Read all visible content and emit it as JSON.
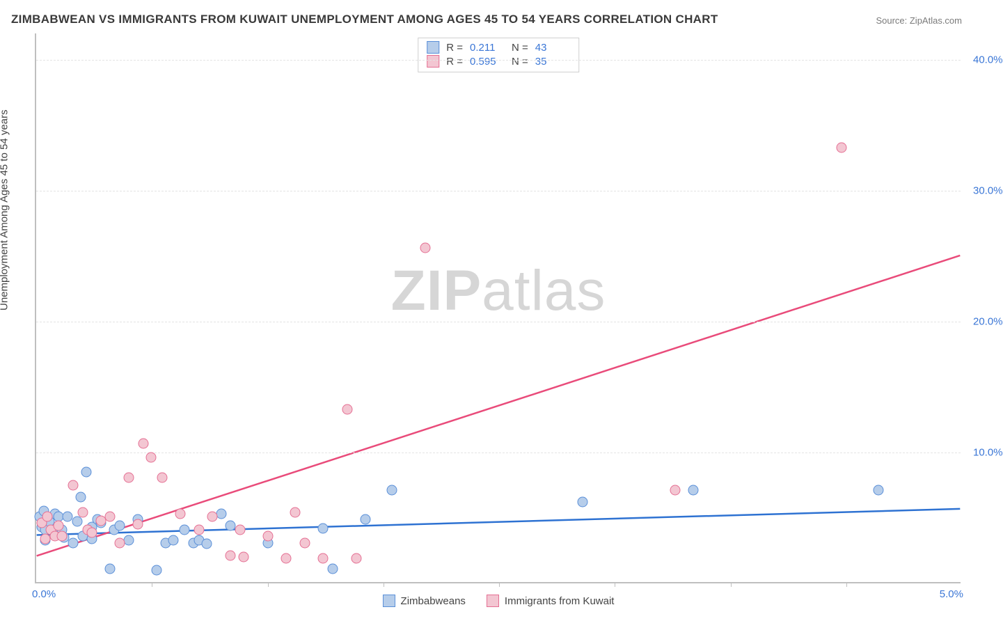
{
  "title": "ZIMBABWEAN VS IMMIGRANTS FROM KUWAIT UNEMPLOYMENT AMONG AGES 45 TO 54 YEARS CORRELATION CHART",
  "source_label": "Source: ",
  "source_name": "ZipAtlas.com",
  "ylabel": "Unemployment Among Ages 45 to 54 years",
  "watermark_a": "ZIP",
  "watermark_b": "atlas",
  "chart": {
    "type": "scatter",
    "xlim": [
      0,
      5
    ],
    "ylim": [
      0,
      42
    ],
    "x_tick_labels": {
      "origin": "0.0%",
      "right": "5.0%"
    },
    "y_ticks": [
      10,
      20,
      30,
      40
    ],
    "y_tick_labels": [
      "10.0%",
      "20.0%",
      "30.0%",
      "40.0%"
    ],
    "x_minor_ticks": [
      0.625,
      1.25,
      1.875,
      2.5,
      3.125,
      3.75,
      4.375
    ],
    "grid_color": "#e3e3e3",
    "axis_color": "#bfbfbf",
    "tick_label_color": "#3a76d6",
    "background_color": "#ffffff",
    "series": [
      {
        "name": "Zimbabweans",
        "fill": "#b6cdea",
        "stroke": "#5a8fd8",
        "line_color": "#2e72d2",
        "R_label": "R =",
        "R": "0.211",
        "N_label": "N =",
        "N": "43",
        "trend": {
          "x1": 0,
          "y1": 3.6,
          "x2": 5,
          "y2": 5.6
        },
        "points": [
          [
            0.02,
            5.0
          ],
          [
            0.03,
            4.2
          ],
          [
            0.04,
            5.4
          ],
          [
            0.05,
            3.2
          ],
          [
            0.05,
            4.0
          ],
          [
            0.07,
            4.6
          ],
          [
            0.1,
            3.8
          ],
          [
            0.1,
            5.2
          ],
          [
            0.12,
            5.0
          ],
          [
            0.14,
            4.0
          ],
          [
            0.15,
            3.4
          ],
          [
            0.17,
            5.0
          ],
          [
            0.2,
            3.0
          ],
          [
            0.22,
            4.6
          ],
          [
            0.24,
            6.5
          ],
          [
            0.25,
            3.5
          ],
          [
            0.27,
            8.4
          ],
          [
            0.3,
            4.2
          ],
          [
            0.3,
            3.3
          ],
          [
            0.33,
            4.8
          ],
          [
            0.35,
            4.5
          ],
          [
            0.4,
            1.0
          ],
          [
            0.42,
            4.0
          ],
          [
            0.45,
            4.3
          ],
          [
            0.5,
            3.2
          ],
          [
            0.55,
            4.8
          ],
          [
            0.65,
            0.9
          ],
          [
            0.7,
            3.0
          ],
          [
            0.74,
            3.2
          ],
          [
            0.8,
            4.0
          ],
          [
            0.85,
            3.0
          ],
          [
            0.88,
            3.2
          ],
          [
            0.92,
            2.9
          ],
          [
            1.0,
            5.2
          ],
          [
            1.05,
            4.3
          ],
          [
            1.25,
            3.0
          ],
          [
            1.55,
            4.1
          ],
          [
            1.6,
            1.0
          ],
          [
            1.78,
            4.8
          ],
          [
            1.92,
            7.0
          ],
          [
            2.95,
            6.1
          ],
          [
            3.55,
            7.0
          ],
          [
            4.55,
            7.0
          ]
        ]
      },
      {
        "name": "Immigrants from Kuwait",
        "fill": "#f3c6d2",
        "stroke": "#e56f93",
        "line_color": "#e94b7a",
        "R_label": "R =",
        "R": "0.595",
        "N_label": "N =",
        "N": "35",
        "trend": {
          "x1": 0,
          "y1": 2.0,
          "x2": 5,
          "y2": 25.0
        },
        "points": [
          [
            0.03,
            4.5
          ],
          [
            0.05,
            3.3
          ],
          [
            0.06,
            5.0
          ],
          [
            0.08,
            4.0
          ],
          [
            0.1,
            3.5
          ],
          [
            0.12,
            4.3
          ],
          [
            0.14,
            3.5
          ],
          [
            0.2,
            7.4
          ],
          [
            0.25,
            5.3
          ],
          [
            0.28,
            4.0
          ],
          [
            0.3,
            3.8
          ],
          [
            0.35,
            4.7
          ],
          [
            0.4,
            5.0
          ],
          [
            0.45,
            3.0
          ],
          [
            0.5,
            8.0
          ],
          [
            0.55,
            4.4
          ],
          [
            0.58,
            10.6
          ],
          [
            0.62,
            9.5
          ],
          [
            0.68,
            8.0
          ],
          [
            0.78,
            5.2
          ],
          [
            0.88,
            4.0
          ],
          [
            0.95,
            5.0
          ],
          [
            1.05,
            2.0
          ],
          [
            1.1,
            4.0
          ],
          [
            1.12,
            1.9
          ],
          [
            1.25,
            3.5
          ],
          [
            1.35,
            1.8
          ],
          [
            1.4,
            5.3
          ],
          [
            1.45,
            3.0
          ],
          [
            1.55,
            1.8
          ],
          [
            1.68,
            13.2
          ],
          [
            1.73,
            1.8
          ],
          [
            2.1,
            25.5
          ],
          [
            3.45,
            7.0
          ],
          [
            4.35,
            33.2
          ]
        ]
      }
    ]
  },
  "legend_bottom": [
    {
      "label": "Zimbabweans",
      "fill": "#b6cdea",
      "stroke": "#5a8fd8"
    },
    {
      "label": "Immigrants from Kuwait",
      "fill": "#f3c6d2",
      "stroke": "#e56f93"
    }
  ]
}
